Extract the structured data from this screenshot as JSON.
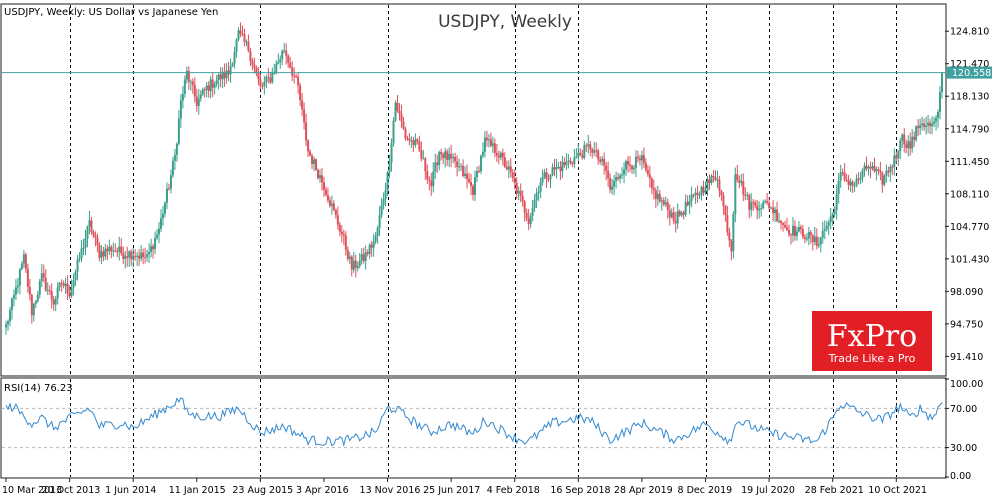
{
  "chart_data": {
    "type": "candlestick",
    "symbol_info": "USDJPY, Weekly:  US Dollar vs Japanese Yen",
    "watermark": "USDJPY, Weekly",
    "price_axis": {
      "min": 89.5,
      "max": 127.5,
      "ticks": [
        "124.810",
        "121.470",
        "118.130",
        "114.790",
        "111.450",
        "108.110",
        "104.770",
        "101.430",
        "98.090",
        "94.750",
        "91.410"
      ]
    },
    "current_price": 120.558,
    "current_price_label": "120.558",
    "x_labels": [
      "10 Mar 2013",
      "20 Oct 2013",
      "1 Jun 2014",
      "11 Jan 2015",
      "23 Aug 2015",
      "3 Apr 2016",
      "13 Nov 2016",
      "25 Jun 2017",
      "4 Feb 2018",
      "16 Sep 2018",
      "28 Apr 2019",
      "8 Dec 2019",
      "19 Jul 2020",
      "28 Feb 2021",
      "10 Oct 2021"
    ],
    "separator_labels": [
      "20 Oct 2013",
      "1 Jun 2014",
      "23 Aug 2015",
      "13 Nov 2016",
      "4 Feb 2018",
      "16 Sep 2018",
      "8 Dec 2019",
      "19 Jul 2020",
      "28 Feb 2021",
      "10 Oct 2021"
    ],
    "series": [
      {
        "name": "USDJPY",
        "close_path": [
          {
            "date": "2013-03-10",
            "close": 94.5
          },
          {
            "date": "2013-04-07",
            "close": 97.5
          },
          {
            "date": "2013-05-12",
            "close": 101.5
          },
          {
            "date": "2013-06-09",
            "close": 96.0
          },
          {
            "date": "2013-07-14",
            "close": 99.5
          },
          {
            "date": "2013-08-25",
            "close": 97.0
          },
          {
            "date": "2013-09-22",
            "close": 99.0
          },
          {
            "date": "2013-10-20",
            "close": 98.0
          },
          {
            "date": "2013-11-24",
            "close": 101.5
          },
          {
            "date": "2013-12-29",
            "close": 105.0
          },
          {
            "date": "2014-02-02",
            "close": 102.0
          },
          {
            "date": "2014-03-16",
            "close": 102.5
          },
          {
            "date": "2014-04-27",
            "close": 102.0
          },
          {
            "date": "2014-06-01",
            "close": 102.0
          },
          {
            "date": "2014-07-20",
            "close": 101.5
          },
          {
            "date": "2014-08-31",
            "close": 104.5
          },
          {
            "date": "2014-10-05",
            "close": 109.0
          },
          {
            "date": "2014-10-26",
            "close": 112.0
          },
          {
            "date": "2014-11-16",
            "close": 117.5
          },
          {
            "date": "2014-12-07",
            "close": 120.5
          },
          {
            "date": "2015-01-11",
            "close": 117.5
          },
          {
            "date": "2015-02-15",
            "close": 119.0
          },
          {
            "date": "2015-03-29",
            "close": 120.0
          },
          {
            "date": "2015-05-03",
            "close": 120.5
          },
          {
            "date": "2015-06-07",
            "close": 124.5
          },
          {
            "date": "2015-07-12",
            "close": 123.0
          },
          {
            "date": "2015-08-23",
            "close": 119.0
          },
          {
            "date": "2015-09-27",
            "close": 120.0
          },
          {
            "date": "2015-11-15",
            "close": 123.0
          },
          {
            "date": "2016-01-03",
            "close": 119.0
          },
          {
            "date": "2016-02-07",
            "close": 112.5
          },
          {
            "date": "2016-04-03",
            "close": 109.0
          },
          {
            "date": "2016-06-05",
            "close": 104.0
          },
          {
            "date": "2016-07-10",
            "close": 100.5
          },
          {
            "date": "2016-08-21",
            "close": 101.5
          },
          {
            "date": "2016-10-02",
            "close": 103.5
          },
          {
            "date": "2016-11-13",
            "close": 110.0
          },
          {
            "date": "2016-12-11",
            "close": 117.5
          },
          {
            "date": "2017-01-15",
            "close": 114.0
          },
          {
            "date": "2017-02-26",
            "close": 113.0
          },
          {
            "date": "2017-04-16",
            "close": 109.0
          },
          {
            "date": "2017-05-14",
            "close": 112.5
          },
          {
            "date": "2017-06-25",
            "close": 111.5
          },
          {
            "date": "2017-07-30",
            "close": 110.5
          },
          {
            "date": "2017-09-10",
            "close": 108.5
          },
          {
            "date": "2017-10-22",
            "close": 113.5
          },
          {
            "date": "2017-12-03",
            "close": 112.5
          },
          {
            "date": "2018-01-14",
            "close": 110.5
          },
          {
            "date": "2018-02-04",
            "close": 109.0
          },
          {
            "date": "2018-03-25",
            "close": 105.5
          },
          {
            "date": "2018-05-06",
            "close": 109.5
          },
          {
            "date": "2018-06-17",
            "close": 110.5
          },
          {
            "date": "2018-07-22",
            "close": 111.0
          },
          {
            "date": "2018-09-16",
            "close": 112.0
          },
          {
            "date": "2018-10-28",
            "close": 113.0
          },
          {
            "date": "2018-12-23",
            "close": 110.5
          },
          {
            "date": "2019-01-06",
            "close": 108.5
          },
          {
            "date": "2019-02-24",
            "close": 111.0
          },
          {
            "date": "2019-04-28",
            "close": 111.5
          },
          {
            "date": "2019-06-02",
            "close": 108.5
          },
          {
            "date": "2019-08-25",
            "close": 105.5
          },
          {
            "date": "2019-10-06",
            "close": 107.0
          },
          {
            "date": "2019-12-08",
            "close": 109.0
          },
          {
            "date": "2020-01-19",
            "close": 110.0
          },
          {
            "date": "2020-03-08",
            "close": 102.5
          },
          {
            "date": "2020-03-22",
            "close": 110.5
          },
          {
            "date": "2020-05-10",
            "close": 107.0
          },
          {
            "date": "2020-07-19",
            "close": 107.0
          },
          {
            "date": "2020-09-20",
            "close": 104.5
          },
          {
            "date": "2020-11-22",
            "close": 104.0
          },
          {
            "date": "2021-01-03",
            "close": 103.0
          },
          {
            "date": "2021-02-28",
            "close": 106.0
          },
          {
            "date": "2021-03-28",
            "close": 110.0
          },
          {
            "date": "2021-05-16",
            "close": 109.0
          },
          {
            "date": "2021-07-04",
            "close": 111.0
          },
          {
            "date": "2021-08-22",
            "close": 109.5
          },
          {
            "date": "2021-10-10",
            "close": 112.0
          },
          {
            "date": "2021-10-24",
            "close": 114.0
          },
          {
            "date": "2021-11-28",
            "close": 113.0
          },
          {
            "date": "2022-01-02",
            "close": 115.5
          },
          {
            "date": "2022-02-13",
            "close": 115.0
          },
          {
            "date": "2022-03-06",
            "close": 116.0
          },
          {
            "date": "2022-03-20",
            "close": 120.5
          }
        ]
      }
    ],
    "rsi": {
      "label": "RSI(14) 76.23",
      "period": 14,
      "value": 76.23,
      "levels": [
        70,
        30
      ],
      "y_range": [
        0,
        100
      ],
      "ticks": [
        "100.00",
        "70.00",
        "30.00",
        "0.00"
      ],
      "path": [
        {
          "date": "2013-03-10",
          "rsi": 70
        },
        {
          "date": "2013-04-07",
          "rsi": 72
        },
        {
          "date": "2013-05-12",
          "rsi": 62
        },
        {
          "date": "2013-06-09",
          "rsi": 55
        },
        {
          "date": "2013-07-14",
          "rsi": 60
        },
        {
          "date": "2013-08-25",
          "rsi": 50
        },
        {
          "date": "2013-10-20",
          "rsi": 60
        },
        {
          "date": "2013-12-29",
          "rsi": 70
        },
        {
          "date": "2014-02-02",
          "rsi": 52
        },
        {
          "date": "2014-04-27",
          "rsi": 55
        },
        {
          "date": "2014-06-01",
          "rsi": 50
        },
        {
          "date": "2014-08-31",
          "rsi": 66
        },
        {
          "date": "2014-11-16",
          "rsi": 80
        },
        {
          "date": "2014-12-07",
          "rsi": 66
        },
        {
          "date": "2015-01-11",
          "rsi": 62
        },
        {
          "date": "2015-03-29",
          "rsi": 62
        },
        {
          "date": "2015-06-07",
          "rsi": 70
        },
        {
          "date": "2015-08-23",
          "rsi": 45
        },
        {
          "date": "2015-11-15",
          "rsi": 52
        },
        {
          "date": "2016-02-07",
          "rsi": 38
        },
        {
          "date": "2016-04-03",
          "rsi": 36
        },
        {
          "date": "2016-07-10",
          "rsi": 38
        },
        {
          "date": "2016-10-02",
          "rsi": 46
        },
        {
          "date": "2016-11-13",
          "rsi": 70
        },
        {
          "date": "2016-12-11",
          "rsi": 70
        },
        {
          "date": "2017-02-26",
          "rsi": 54
        },
        {
          "date": "2017-04-16",
          "rsi": 46
        },
        {
          "date": "2017-06-25",
          "rsi": 54
        },
        {
          "date": "2017-09-10",
          "rsi": 44
        },
        {
          "date": "2017-10-22",
          "rsi": 58
        },
        {
          "date": "2018-02-04",
          "rsi": 40
        },
        {
          "date": "2018-03-25",
          "rsi": 36
        },
        {
          "date": "2018-06-17",
          "rsi": 55
        },
        {
          "date": "2018-09-16",
          "rsi": 60
        },
        {
          "date": "2018-10-28",
          "rsi": 58
        },
        {
          "date": "2019-01-06",
          "rsi": 38
        },
        {
          "date": "2019-04-28",
          "rsi": 55
        },
        {
          "date": "2019-08-25",
          "rsi": 38
        },
        {
          "date": "2019-12-08",
          "rsi": 54
        },
        {
          "date": "2020-03-08",
          "rsi": 36
        },
        {
          "date": "2020-03-22",
          "rsi": 58
        },
        {
          "date": "2020-07-19",
          "rsi": 45
        },
        {
          "date": "2021-01-03",
          "rsi": 36
        },
        {
          "date": "2021-02-28",
          "rsi": 60
        },
        {
          "date": "2021-03-28",
          "rsi": 75
        },
        {
          "date": "2021-07-04",
          "rsi": 62
        },
        {
          "date": "2021-08-22",
          "rsi": 58
        },
        {
          "date": "2021-10-24",
          "rsi": 72
        },
        {
          "date": "2021-11-28",
          "rsi": 60
        },
        {
          "date": "2022-01-02",
          "rsi": 70
        },
        {
          "date": "2022-02-13",
          "rsi": 60
        },
        {
          "date": "2022-03-20",
          "rsi": 76.23
        }
      ]
    },
    "colors": {
      "up_body": "#3aa08c",
      "down_body": "#e0505a",
      "rsi_line": "#3288d0",
      "price_line": "#40a0a0",
      "brand_red": "#e31f26"
    }
  },
  "logo": {
    "brand": "FxPro",
    "tagline": "Trade Like a Pro"
  }
}
